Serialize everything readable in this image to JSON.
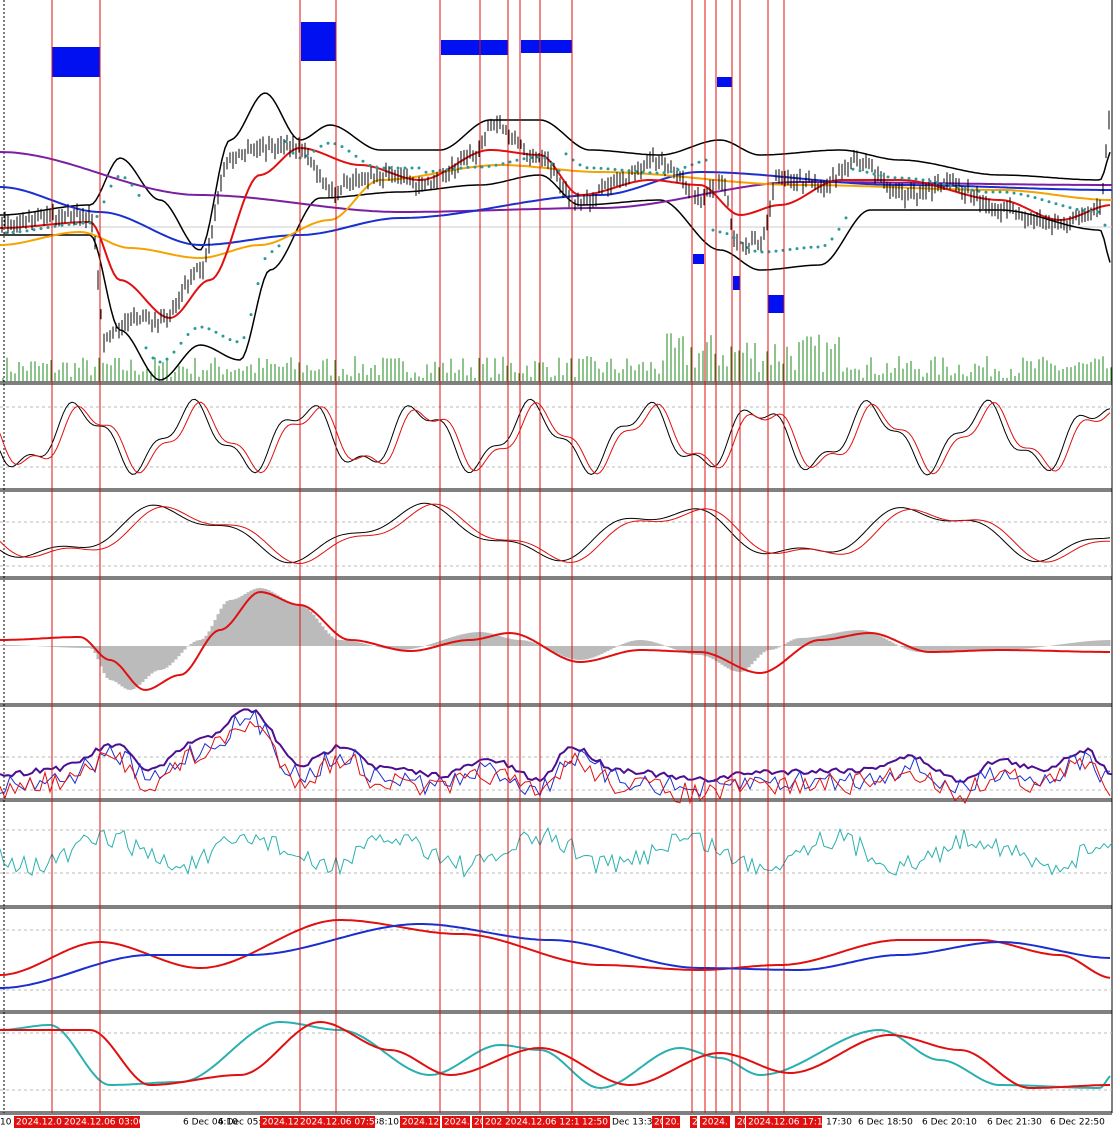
{
  "time_axis": {
    "labels": [
      "10",
      "6 Dec 04:10",
      "6 Dec 05:",
      "08:10",
      "Dec 13:30",
      "17:30",
      "6 Dec 18:50",
      "6 Dec 20:10",
      "6 Dec 21:30",
      "6 Dec 22:50"
    ],
    "markers": [
      "2024.12.06",
      "2024.12.06 03:00",
      "2024.12",
      "2024.12.06 07:55",
      "2024.12.",
      "2024.",
      "20",
      "202",
      "2024.12.06 12:10",
      "12:50",
      "20",
      "20.",
      "2",
      "2024.",
      "20.",
      "2024.12.06 17:15"
    ]
  }
}
